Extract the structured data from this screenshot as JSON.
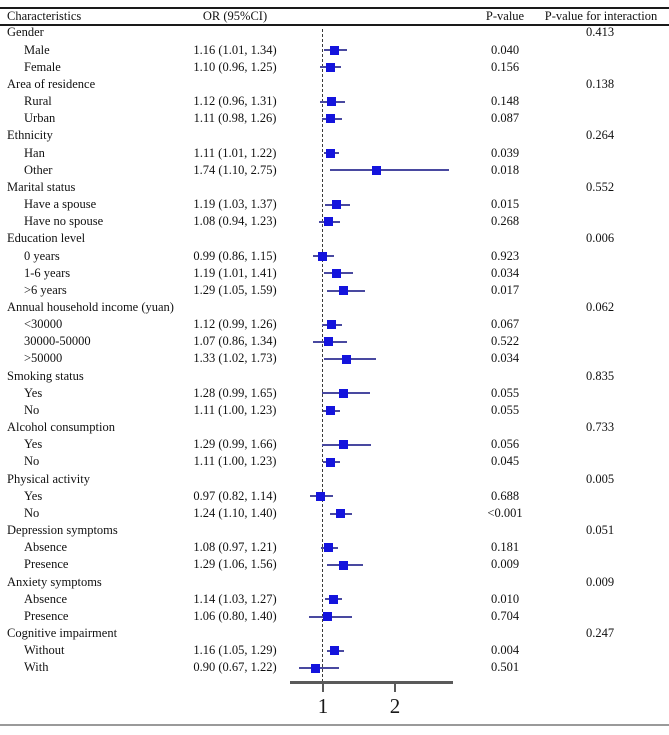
{
  "colors": {
    "marker": "#1414dd",
    "ci_line": "#4949a0",
    "ref_line": "#3c3c3c",
    "axis": "#5a5a5a",
    "text": "#111111"
  },
  "header": {
    "characteristics": "Characteristics",
    "or_ci": "OR (95%CI)",
    "p_value": "P-value",
    "p_interaction": "P-value for interaction"
  },
  "chart_data": {
    "type": "forest",
    "title": "",
    "xlabel": "",
    "xlim": [
      0.54,
      2.79
    ],
    "axis_ticks": [
      {
        "value": 1,
        "label": "1"
      },
      {
        "value": 2,
        "label": "2"
      }
    ],
    "reference_value": 1,
    "rows": [
      {
        "label": "Gender",
        "group": true,
        "p_interaction": "0.413"
      },
      {
        "label": "Male",
        "or_text": "1.16 (1.01, 1.34)",
        "or": 1.16,
        "lo": 1.01,
        "hi": 1.34,
        "p": "0.040"
      },
      {
        "label": "Female",
        "or_text": "1.10 (0.96, 1.25)",
        "or": 1.1,
        "lo": 0.96,
        "hi": 1.25,
        "p": "0.156"
      },
      {
        "label": "Area of residence",
        "group": true,
        "p_interaction": "0.138"
      },
      {
        "label": "Rural",
        "or_text": "1.12 (0.96, 1.31)",
        "or": 1.12,
        "lo": 0.96,
        "hi": 1.31,
        "p": "0.148"
      },
      {
        "label": "Urban",
        "or_text": "1.11 (0.98, 1.26)",
        "or": 1.11,
        "lo": 0.98,
        "hi": 1.26,
        "p": "0.087"
      },
      {
        "label": "Ethnicity",
        "group": true,
        "p_interaction": "0.264"
      },
      {
        "label": "Han",
        "or_text": "1.11 (1.01, 1.22)",
        "or": 1.11,
        "lo": 1.01,
        "hi": 1.22,
        "p": "0.039"
      },
      {
        "label": "Other",
        "or_text": "1.74 (1.10, 2.75)",
        "or": 1.74,
        "lo": 1.1,
        "hi": 2.75,
        "p": "0.018"
      },
      {
        "label": "Marital status",
        "group": true,
        "p_interaction": "0.552"
      },
      {
        "label": "Have a spouse",
        "or_text": "1.19 (1.03, 1.37)",
        "or": 1.19,
        "lo": 1.03,
        "hi": 1.37,
        "p": "0.015"
      },
      {
        "label": "Have no spouse",
        "or_text": "1.08 (0.94, 1.23)",
        "or": 1.08,
        "lo": 0.94,
        "hi": 1.23,
        "p": "0.268"
      },
      {
        "label": "Education level",
        "group": true,
        "p_interaction": "0.006"
      },
      {
        "label": "0 years",
        "or_text": "0.99 (0.86, 1.15)",
        "or": 0.99,
        "lo": 0.86,
        "hi": 1.15,
        "p": "0.923"
      },
      {
        "label": "1-6 years",
        "or_text": "1.19 (1.01, 1.41)",
        "or": 1.19,
        "lo": 1.01,
        "hi": 1.41,
        "p": "0.034"
      },
      {
        "label": ">6 years",
        "or_text": "1.29 (1.05, 1.59)",
        "or": 1.29,
        "lo": 1.05,
        "hi": 1.59,
        "p": "0.017"
      },
      {
        "label": "Annual household income (yuan)",
        "group": true,
        "p_interaction": "0.062"
      },
      {
        "label": "<30000",
        "or_text": "1.12 (0.99, 1.26)",
        "or": 1.12,
        "lo": 0.99,
        "hi": 1.26,
        "p": "0.067"
      },
      {
        "label": "30000-50000",
        "or_text": "1.07 (0.86, 1.34)",
        "or": 1.07,
        "lo": 0.86,
        "hi": 1.34,
        "p": "0.522"
      },
      {
        "label": ">50000",
        "or_text": "1.33 (1.02, 1.73)",
        "or": 1.33,
        "lo": 1.02,
        "hi": 1.73,
        "p": "0.034"
      },
      {
        "label": "Smoking status",
        "group": true,
        "p_interaction": "0.835"
      },
      {
        "label": "Yes",
        "or_text": "1.28 (0.99, 1.65)",
        "or": 1.28,
        "lo": 0.99,
        "hi": 1.65,
        "p": "0.055"
      },
      {
        "label": "No",
        "or_text": "1.11 (1.00, 1.23)",
        "or": 1.11,
        "lo": 1.0,
        "hi": 1.23,
        "p": "0.055"
      },
      {
        "label": "Alcohol consumption",
        "group": true,
        "p_interaction": "0.733"
      },
      {
        "label": "Yes",
        "or_text": "1.29 (0.99, 1.66)",
        "or": 1.29,
        "lo": 0.99,
        "hi": 1.66,
        "p": "0.056"
      },
      {
        "label": "No",
        "or_text": "1.11 (1.00, 1.23)",
        "or": 1.11,
        "lo": 1.0,
        "hi": 1.23,
        "p": "0.045"
      },
      {
        "label": "Physical activity",
        "group": true,
        "p_interaction": "0.005"
      },
      {
        "label": "Yes",
        "or_text": "0.97 (0.82, 1.14)",
        "or": 0.97,
        "lo": 0.82,
        "hi": 1.14,
        "p": "0.688"
      },
      {
        "label": "No",
        "or_text": "1.24 (1.10, 1.40)",
        "or": 1.24,
        "lo": 1.1,
        "hi": 1.4,
        "p": "<0.001"
      },
      {
        "label": "Depression symptoms",
        "group": true,
        "p_interaction": "0.051"
      },
      {
        "label": "Absence",
        "or_text": "1.08 (0.97, 1.21)",
        "or": 1.08,
        "lo": 0.97,
        "hi": 1.21,
        "p": "0.181"
      },
      {
        "label": "Presence",
        "or_text": "1.29 (1.06, 1.56)",
        "or": 1.29,
        "lo": 1.06,
        "hi": 1.56,
        "p": "0.009"
      },
      {
        "label": "Anxiety symptoms",
        "group": true,
        "p_interaction": "0.009"
      },
      {
        "label": "Absence",
        "or_text": "1.14 (1.03, 1.27)",
        "or": 1.14,
        "lo": 1.03,
        "hi": 1.27,
        "p": "0.010"
      },
      {
        "label": "Presence",
        "or_text": "1.06 (0.80, 1.40)",
        "or": 1.06,
        "lo": 0.8,
        "hi": 1.4,
        "p": "0.704"
      },
      {
        "label": "Cognitive impairment",
        "group": true,
        "p_interaction": "0.247"
      },
      {
        "label": "Without",
        "or_text": "1.16 (1.05, 1.29)",
        "or": 1.16,
        "lo": 1.05,
        "hi": 1.29,
        "p": "0.004"
      },
      {
        "label": "With",
        "or_text": "0.90 (0.67, 1.22)",
        "or": 0.9,
        "lo": 0.67,
        "hi": 1.22,
        "p": "0.501"
      }
    ]
  }
}
